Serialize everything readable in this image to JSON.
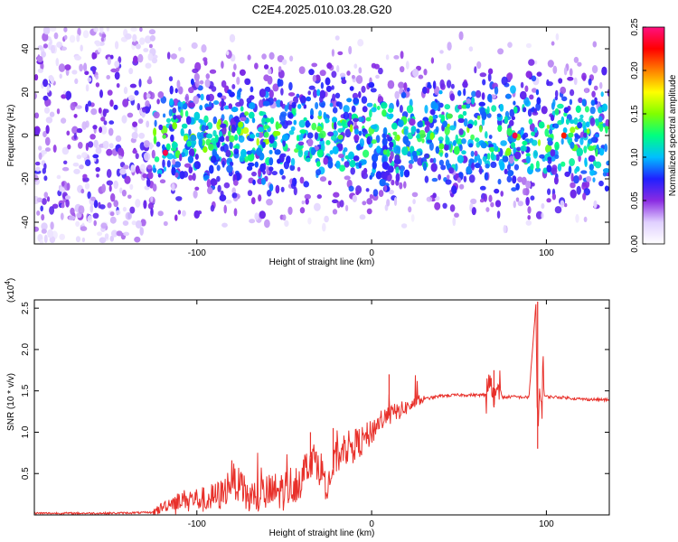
{
  "title": "C2E4.2025.010.03.28.G20",
  "chart_data": [
    {
      "type": "heatmap",
      "xlabel": "Height of straight line (km)",
      "ylabel": "Frequency (Hz)",
      "xlim": [
        -193,
        136
      ],
      "ylim": [
        -50,
        50
      ],
      "xticks": [
        -100,
        0,
        100
      ],
      "yticks": [
        -40,
        -20,
        0,
        20,
        40
      ],
      "colorbar": {
        "label": "Normalized spectral amplitude",
        "range": [
          0,
          0.25
        ],
        "ticks": [
          "0.00",
          "0.05",
          "0.10",
          "0.15",
          "0.20",
          "0.25"
        ],
        "colors": [
          "#ffffff",
          "#e0d0ff",
          "#8a2be2",
          "#2020ff",
          "#00bfff",
          "#00ff80",
          "#80ff00",
          "#ffff00",
          "#ff8000",
          "#ff0000",
          "#ff1080"
        ]
      },
      "grid": false,
      "description_values": {
        "occupied_band_hz": [
          -45,
          45
        ],
        "hotspots": [
          {
            "x": -118,
            "y": -8,
            "value": 0.24
          },
          {
            "x": 82,
            "y": 0,
            "value": 0.24
          },
          {
            "x": 110,
            "y": 0,
            "value": 0.22
          },
          {
            "x": -75,
            "y": 5,
            "value": 0.15
          },
          {
            "x": -30,
            "y": 3,
            "value": 0.14
          },
          {
            "x": 40,
            "y": -5,
            "value": 0.14
          }
        ]
      }
    },
    {
      "type": "line",
      "xlabel": "Height of straight line (km)",
      "ylabel": "SNR (10 * v/v)",
      "multiplier": "(x10^4)",
      "multiplier_base": "(x10",
      "multiplier_exp": "4",
      "multiplier_close": ")",
      "xlim": [
        -193,
        136
      ],
      "ylim": [
        0,
        2.6
      ],
      "xticks": [
        -100,
        0,
        100
      ],
      "yticks": [
        0.5,
        1.0,
        1.5,
        2.0,
        2.5
      ],
      "color": "#e8302a",
      "grid": false,
      "series": [
        {
          "x": [
            -193,
            -150,
            -125,
            -115,
            -105,
            -95,
            -85,
            -80,
            -70,
            -60,
            -50,
            -40,
            -35,
            -30,
            -25,
            -20,
            -15,
            -10,
            -5,
            0,
            5,
            10,
            15,
            20,
            30,
            40,
            50,
            60,
            65,
            68,
            70,
            72,
            75,
            80,
            90,
            94,
            95,
            96,
            97,
            98,
            100,
            110,
            120,
            136
          ],
          "y": [
            0.02,
            0.02,
            0.03,
            0.15,
            0.2,
            0.18,
            0.25,
            0.45,
            0.2,
            0.25,
            0.3,
            0.45,
            0.7,
            0.6,
            0.35,
            0.7,
            0.8,
            0.85,
            0.9,
            1.0,
            1.15,
            1.2,
            1.25,
            1.3,
            1.4,
            1.44,
            1.45,
            1.45,
            1.45,
            1.55,
            1.3,
            1.6,
            1.42,
            1.43,
            1.42,
            2.55,
            0.8,
            1.5,
            1.35,
            1.45,
            1.43,
            1.42,
            1.4,
            1.39
          ]
        }
      ],
      "spikes": [
        {
          "x": -80,
          "y": 0.66
        },
        {
          "x": -35,
          "y": 1.0
        },
        {
          "x": -22,
          "y": 1.05
        },
        {
          "x": 10,
          "y": 1.7
        },
        {
          "x": 70,
          "y": 1.75
        },
        {
          "x": 95,
          "y": 2.58
        }
      ]
    }
  ]
}
